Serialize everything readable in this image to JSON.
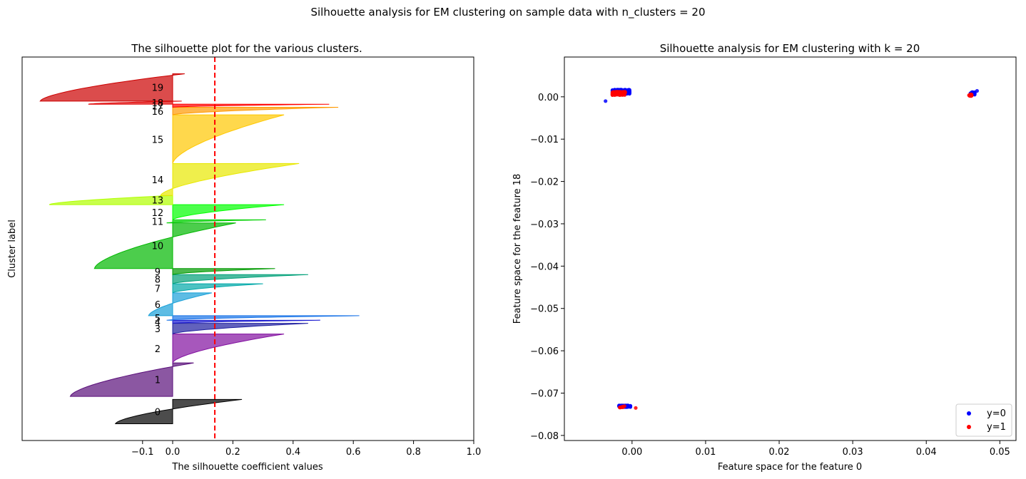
{
  "suptitle": "Silhouette analysis for EM clustering on sample data with n_clusters = 20",
  "chart_data": [
    {
      "type": "silhouette",
      "title": "The silhouette plot for the various clusters.",
      "xlabel": "The silhouette coefficient values",
      "ylabel": "Cluster label",
      "xlim": [
        -0.5,
        1.0
      ],
      "xticks": [
        -0.1,
        0.0,
        0.2,
        0.4,
        0.6,
        0.8,
        1.0
      ],
      "xtick_labels": [
        "−0.1",
        "0.0",
        "0.2",
        "0.4",
        "0.6",
        "0.8",
        "1.0"
      ],
      "ylim": [
        0,
        1260
      ],
      "average_silhouette": 0.14,
      "clusters": [
        {
          "label": "0",
          "y0": 55,
          "y1": 135,
          "min": -0.19,
          "max": 0.23,
          "color": "#000000"
        },
        {
          "label": "1",
          "y0": 145,
          "y1": 255,
          "min": -0.34,
          "max": 0.07,
          "color": "#5a0f7a"
        },
        {
          "label": "2",
          "y0": 255,
          "y1": 350,
          "min": 0.0,
          "max": 0.37,
          "color": "#8210a0"
        },
        {
          "label": "3",
          "y0": 350,
          "y1": 385,
          "min": 0.0,
          "max": 0.45,
          "color": "#2020a0"
        },
        {
          "label": "4",
          "y0": 385,
          "y1": 395,
          "min": 0.0,
          "max": 0.49,
          "color": "#1a1ad0"
        },
        {
          "label": "5",
          "y0": 395,
          "y1": 410,
          "min": -0.02,
          "max": 0.62,
          "color": "#1a74e8"
        },
        {
          "label": "6",
          "y0": 410,
          "y1": 485,
          "min": -0.08,
          "max": 0.13,
          "color": "#18a0d8"
        },
        {
          "label": "7",
          "y0": 485,
          "y1": 515,
          "min": 0.0,
          "max": 0.3,
          "color": "#00a8a8"
        },
        {
          "label": "8",
          "y0": 515,
          "y1": 545,
          "min": 0.0,
          "max": 0.45,
          "color": "#00a078"
        },
        {
          "label": "9",
          "y0": 545,
          "y1": 565,
          "min": 0.0,
          "max": 0.34,
          "color": "#009a00"
        },
        {
          "label": "10",
          "y0": 565,
          "y1": 715,
          "min": -0.26,
          "max": 0.21,
          "color": "#00b800"
        },
        {
          "label": "11",
          "y0": 715,
          "y1": 725,
          "min": -0.02,
          "max": 0.31,
          "color": "#00d000"
        },
        {
          "label": "12",
          "y0": 725,
          "y1": 775,
          "min": 0.0,
          "max": 0.37,
          "color": "#00ff00"
        },
        {
          "label": "13",
          "y0": 775,
          "y1": 805,
          "min": -0.41,
          "max": 0.0,
          "color": "#b0ff00"
        },
        {
          "label": "14",
          "y0": 805,
          "y1": 910,
          "min": -0.04,
          "max": 0.42,
          "color": "#e8e800"
        },
        {
          "label": "15",
          "y0": 910,
          "y1": 1070,
          "min": 0.0,
          "max": 0.37,
          "color": "#ffc800"
        },
        {
          "label": "16",
          "y0": 1070,
          "y1": 1095,
          "min": 0.0,
          "max": 0.55,
          "color": "#ff9900"
        },
        {
          "label": "17",
          "y0": 1095,
          "y1": 1105,
          "min": 0.0,
          "max": 0.52,
          "color": "#ff0000"
        },
        {
          "label": "18",
          "y0": 1105,
          "y1": 1115,
          "min": -0.28,
          "max": 0.03,
          "color": "#e00000"
        },
        {
          "label": "19",
          "y0": 1115,
          "y1": 1205,
          "min": -0.44,
          "max": 0.04,
          "color": "#cc0000"
        }
      ]
    },
    {
      "type": "scatter",
      "title": "Silhouette analysis for EM clustering with k = 20",
      "xlabel": "Feature space for the feature 0",
      "ylabel": "Feature space for the feature 18",
      "xlim": [
        -0.0092,
        0.0522
      ],
      "ylim": [
        -0.0812,
        0.0094
      ],
      "xticks": [
        0.0,
        0.01,
        0.02,
        0.03,
        0.04,
        0.05
      ],
      "xtick_labels": [
        "0.00",
        "0.01",
        "0.02",
        "0.03",
        "0.04",
        "0.05"
      ],
      "yticks": [
        0.0,
        -0.01,
        -0.02,
        -0.03,
        -0.04,
        -0.05,
        -0.06,
        -0.07,
        -0.08
      ],
      "ytick_labels": [
        "0.00",
        "−0.01",
        "−0.02",
        "−0.03",
        "−0.04",
        "−0.05",
        "−0.06",
        "−0.07",
        "−0.08"
      ],
      "legend_position": "bottom-right",
      "series": [
        {
          "name": "y=0",
          "color": "#0000ff",
          "blobs": [
            {
              "cx": -0.0015,
              "cy": 0.0012,
              "sx": 0.0012,
              "sy": 0.0005,
              "n": 220
            },
            {
              "cx": 0.0463,
              "cy": 0.0008,
              "sx": 0.0003,
              "sy": 0.0003,
              "n": 40
            },
            {
              "cx": -0.001,
              "cy": -0.0731,
              "sx": 0.0008,
              "sy": 0.0002,
              "n": 60
            }
          ],
          "points": [
            [
              -0.0036,
              -0.001
            ],
            [
              0.0469,
              0.0014
            ]
          ]
        },
        {
          "name": "y=1",
          "color": "#ff0000",
          "blobs": [
            {
              "cx": -0.0018,
              "cy": 0.0008,
              "sx": 0.0009,
              "sy": 0.0004,
              "n": 150
            },
            {
              "cx": 0.046,
              "cy": 0.0004,
              "sx": 0.0002,
              "sy": 0.0002,
              "n": 18
            },
            {
              "cx": -0.0012,
              "cy": -0.0733,
              "sx": 0.0005,
              "sy": 0.0002,
              "n": 6
            }
          ],
          "points": [
            [
              -0.0016,
              -0.0734
            ],
            [
              0.0005,
              -0.0735
            ]
          ]
        }
      ]
    }
  ]
}
